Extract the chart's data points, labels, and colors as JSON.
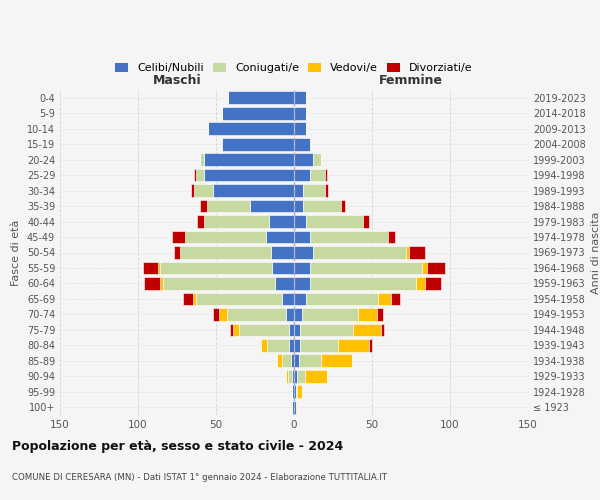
{
  "age_groups": [
    "100+",
    "95-99",
    "90-94",
    "85-89",
    "80-84",
    "75-79",
    "70-74",
    "65-69",
    "60-64",
    "55-59",
    "50-54",
    "45-49",
    "40-44",
    "35-39",
    "30-34",
    "25-29",
    "20-24",
    "15-19",
    "10-14",
    "5-9",
    "0-4"
  ],
  "birth_years": [
    "≤ 1923",
    "1924-1928",
    "1929-1933",
    "1934-1938",
    "1939-1943",
    "1944-1948",
    "1949-1953",
    "1954-1958",
    "1959-1963",
    "1964-1968",
    "1969-1973",
    "1974-1978",
    "1979-1983",
    "1984-1988",
    "1989-1993",
    "1994-1998",
    "1999-2003",
    "2004-2008",
    "2009-2013",
    "2014-2018",
    "2019-2023"
  ],
  "male": {
    "celibe": [
      1,
      1,
      1,
      2,
      3,
      3,
      5,
      8,
      12,
      14,
      15,
      18,
      16,
      28,
      52,
      58,
      58,
      46,
      55,
      46,
      42
    ],
    "coniugato": [
      0,
      0,
      3,
      6,
      14,
      32,
      38,
      55,
      72,
      72,
      58,
      52,
      42,
      28,
      12,
      5,
      2,
      1,
      0,
      0,
      0
    ],
    "vedovo": [
      0,
      0,
      1,
      3,
      4,
      4,
      5,
      2,
      2,
      1,
      0,
      0,
      0,
      0,
      0,
      0,
      0,
      0,
      0,
      0,
      0
    ],
    "divorziato": [
      0,
      0,
      0,
      0,
      0,
      2,
      4,
      6,
      10,
      10,
      4,
      8,
      4,
      4,
      2,
      1,
      0,
      0,
      0,
      0,
      0
    ]
  },
  "female": {
    "nubile": [
      1,
      1,
      2,
      3,
      4,
      4,
      5,
      8,
      10,
      10,
      12,
      10,
      8,
      6,
      6,
      10,
      12,
      10,
      8,
      8,
      8
    ],
    "coniugata": [
      0,
      1,
      5,
      14,
      24,
      34,
      36,
      46,
      68,
      72,
      60,
      50,
      36,
      24,
      14,
      10,
      5,
      1,
      0,
      0,
      0
    ],
    "vedova": [
      1,
      3,
      14,
      20,
      20,
      18,
      12,
      8,
      6,
      3,
      2,
      0,
      0,
      0,
      0,
      0,
      0,
      0,
      0,
      0,
      0
    ],
    "divorziata": [
      0,
      0,
      0,
      0,
      2,
      2,
      4,
      6,
      10,
      12,
      10,
      5,
      4,
      3,
      2,
      1,
      0,
      0,
      0,
      0,
      0
    ]
  },
  "colors": {
    "celibe": "#4472c4",
    "coniugato": "#c5d9a0",
    "vedovo": "#ffc000",
    "divorziato": "#c00000"
  },
  "legend_labels": [
    "Celibi/Nubili",
    "Coniugati/e",
    "Vedovi/e",
    "Divorziati/e"
  ],
  "xlim": 150,
  "title": "Popolazione per età, sesso e stato civile - 2024",
  "subtitle": "COMUNE DI CERESARA (MN) - Dati ISTAT 1° gennaio 2024 - Elaborazione TUTTITALIA.IT",
  "ylabel_left": "Fasce di età",
  "ylabel_right": "Anni di nascita",
  "xlabel_left": "Maschi",
  "xlabel_right": "Femmine",
  "bg_color": "#f5f5f5",
  "grid_color": "#cccccc"
}
